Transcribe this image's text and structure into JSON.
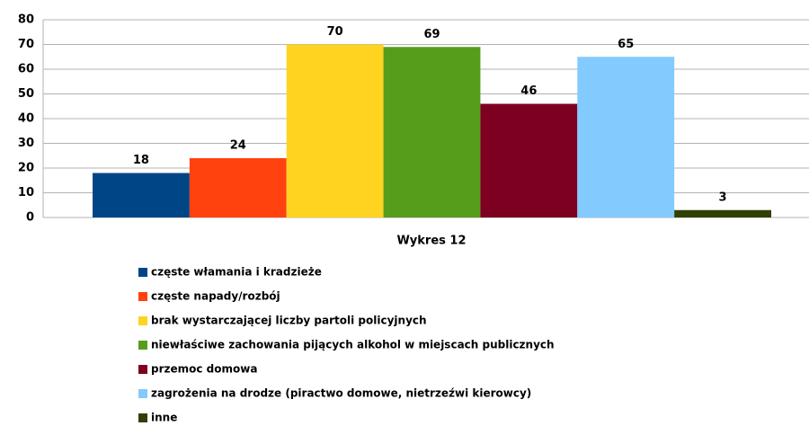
{
  "chart_data": {
    "type": "bar",
    "xlabel": "Wykres 12",
    "ylim": [
      0,
      80
    ],
    "yticks": [
      0,
      10,
      20,
      30,
      40,
      50,
      60,
      70,
      80
    ],
    "grid": true,
    "series": [
      {
        "name": "częste włamania i kradzieże",
        "color": "#004586",
        "values": [
          18
        ]
      },
      {
        "name": "częste napady/rozbój",
        "color": "#ff420e",
        "values": [
          24
        ]
      },
      {
        "name": "brak wystarczającej liczby partoli policyjnych",
        "color": "#ffd320",
        "values": [
          70
        ]
      },
      {
        "name": "niewłaściwe zachowania pijących alkohol w miejscach publicznych",
        "color": "#579d1c",
        "values": [
          69
        ]
      },
      {
        "name": "przemoc domowa",
        "color": "#7e0021",
        "values": [
          46
        ]
      },
      {
        "name": "zagrożenia na drodze (piractwo domowe, nietrzeźwi kierowcy)",
        "color": "#83caff",
        "values": [
          65
        ]
      },
      {
        "name": "inne",
        "color": "#314004",
        "values": [
          3
        ]
      }
    ]
  }
}
